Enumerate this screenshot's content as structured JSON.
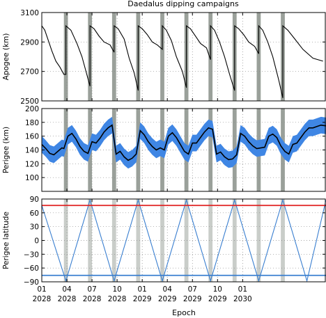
{
  "title": "Daedalus dipping campaigns",
  "colors": {
    "curve": "#000000",
    "band": "#3f86e4",
    "campaign_shade": "#9aa09a",
    "campaign_light": "#c9cdc9",
    "red_line": "#e02020",
    "blue_line": "#3a7fd0",
    "grid": "#888888"
  },
  "chart_data": [
    {
      "type": "line",
      "name": "apogee-panel",
      "ylabel": "Apogee (km)",
      "ylim": [
        2500,
        3100
      ],
      "yticks": [
        2500,
        2700,
        2900,
        3100
      ],
      "grid": true,
      "x_range": [
        2028.0,
        2030.83
      ],
      "campaigns": [
        [
          2028.22,
          2028.26
        ],
        [
          2028.46,
          2028.5
        ],
        [
          2028.7,
          2028.74
        ],
        [
          2028.94,
          2028.98
        ],
        [
          2029.18,
          2029.22
        ],
        [
          2029.42,
          2029.46
        ],
        [
          2029.66,
          2029.7
        ],
        [
          2029.9,
          2029.94
        ],
        [
          2030.14,
          2030.18
        ],
        [
          2030.38,
          2030.42
        ]
      ],
      "series": [
        {
          "x": [
            2028.0,
            2028.03,
            2028.06,
            2028.1,
            2028.14,
            2028.18,
            2028.22,
            2028.24,
            2028.24,
            2028.29,
            2028.35,
            2028.4,
            2028.44,
            2028.48,
            2028.48,
            2028.52,
            2028.57,
            2028.62,
            2028.68,
            2028.72,
            2028.72,
            2028.76,
            2028.82,
            2028.87,
            2028.92,
            2028.96,
            2028.96,
            2029.0,
            2029.05,
            2029.1,
            2029.15,
            2029.2,
            2029.2,
            2029.24,
            2029.29,
            2029.34,
            2029.4,
            2029.44,
            2029.44,
            2029.48,
            2029.53,
            2029.58,
            2029.64,
            2029.68,
            2029.68,
            2029.72,
            2029.77,
            2029.82,
            2029.87,
            2029.92,
            2029.92,
            2029.96,
            2030.01,
            2030.06,
            2030.12,
            2030.16,
            2030.16,
            2030.2,
            2030.25,
            2030.3,
            2030.36,
            2030.4,
            2030.4,
            2030.45,
            2030.52,
            2030.6,
            2030.7,
            2030.8
          ],
          "values": [
            3010,
            2980,
            2920,
            2840,
            2770,
            2730,
            2680,
            2680,
            3010,
            2980,
            2890,
            2800,
            2700,
            2600,
            3010,
            2990,
            2940,
            2900,
            2880,
            2830,
            3010,
            2990,
            2920,
            2790,
            2690,
            2570,
            3010,
            2990,
            2950,
            2900,
            2880,
            2850,
            3010,
            2980,
            2910,
            2800,
            2700,
            2590,
            3010,
            2990,
            2940,
            2890,
            2860,
            2780,
            3010,
            2980,
            2900,
            2800,
            2680,
            2570,
            3010,
            2990,
            2950,
            2900,
            2870,
            2820,
            3010,
            2980,
            2900,
            2800,
            2640,
            2520,
            3010,
            2980,
            2920,
            2850,
            2790,
            2770
          ]
        }
      ]
    },
    {
      "type": "area",
      "name": "perigee-panel",
      "ylabel": "Perigee (km)",
      "ylim": [
        80,
        200
      ],
      "yticks": [
        100,
        120,
        140,
        160,
        180,
        200
      ],
      "grid": true,
      "x_range": [
        2028.0,
        2030.83
      ],
      "series": [
        {
          "x": [
            2028.0,
            2028.04,
            2028.08,
            2028.12,
            2028.16,
            2028.2,
            2028.22,
            2028.26,
            2028.3,
            2028.34,
            2028.38,
            2028.42,
            2028.46,
            2028.5,
            2028.54,
            2028.58,
            2028.62,
            2028.66,
            2028.7,
            2028.74,
            2028.78,
            2028.82,
            2028.86,
            2028.9,
            2028.94,
            2028.98,
            2029.02,
            2029.06,
            2029.1,
            2029.14,
            2029.18,
            2029.22,
            2029.26,
            2029.3,
            2029.34,
            2029.38,
            2029.42,
            2029.46,
            2029.5,
            2029.54,
            2029.58,
            2029.62,
            2029.66,
            2029.7,
            2029.74,
            2029.78,
            2029.82,
            2029.86,
            2029.9,
            2029.94,
            2029.98,
            2030.02,
            2030.06,
            2030.1,
            2030.14,
            2030.18,
            2030.22,
            2030.26,
            2030.3,
            2030.34,
            2030.38,
            2030.42,
            2030.46,
            2030.5,
            2030.54,
            2030.58,
            2030.62,
            2030.66,
            2030.7,
            2030.74,
            2030.78,
            2030.83
          ],
          "values": [
            148,
            142,
            135,
            133,
            138,
            143,
            142,
            160,
            164,
            156,
            145,
            138,
            135,
            152,
            150,
            157,
            166,
            172,
            176,
            134,
            138,
            130,
            125,
            128,
            134,
            168,
            162,
            152,
            145,
            140,
            143,
            140,
            160,
            165,
            158,
            148,
            138,
            134,
            150,
            150,
            158,
            166,
            172,
            170,
            134,
            137,
            130,
            126,
            127,
            133,
            164,
            160,
            152,
            146,
            142,
            143,
            144,
            160,
            163,
            158,
            146,
            138,
            134,
            148,
            150,
            158,
            166,
            172,
            172,
            174,
            176,
            175
          ],
          "band_half_width": 12
        }
      ]
    },
    {
      "type": "line",
      "name": "latitude-panel",
      "ylabel": "Perigee latitude",
      "ylim": [
        -90,
        90
      ],
      "yticks": [
        -90,
        -60,
        -30,
        0,
        30,
        60,
        90
      ],
      "ytick_labels": [
        "−90",
        "−60",
        "−30",
        "0",
        "30",
        "60",
        "90"
      ],
      "grid": true,
      "x_range": [
        2028.0,
        2030.83
      ],
      "xticks": [
        2028.0,
        2028.25,
        2028.5,
        2028.75,
        2029.0,
        2029.25,
        2029.5,
        2029.75,
        2030.0
      ],
      "xtick_labels": [
        [
          "01",
          "2028"
        ],
        [
          "04",
          "2028"
        ],
        [
          "07",
          "2028"
        ],
        [
          "10",
          "2028"
        ],
        [
          "01",
          "2029"
        ],
        [
          "04",
          "2029"
        ],
        [
          "07",
          "2029"
        ],
        [
          "10",
          "2029"
        ],
        [
          "01",
          "2030"
        ]
      ],
      "xlabel": "Epoch",
      "hlines": [
        {
          "value": 76,
          "color": "#e02020"
        },
        {
          "value": -76,
          "color": "#3a7fd0"
        }
      ],
      "series": [
        {
          "x": [
            2028.0,
            2028.24,
            2028.48,
            2028.72,
            2028.96,
            2029.2,
            2029.44,
            2029.68,
            2029.92,
            2030.16,
            2030.4,
            2030.64,
            2030.83
          ],
          "values": [
            76,
            -88,
            88,
            -88,
            88,
            -88,
            88,
            -88,
            88,
            -88,
            88,
            -88,
            88
          ]
        }
      ]
    }
  ]
}
